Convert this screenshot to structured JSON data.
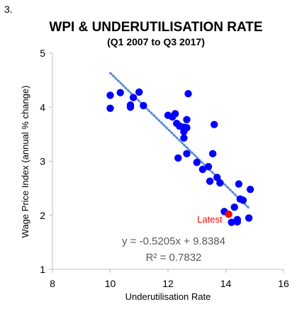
{
  "figure": {
    "number": "3."
  },
  "colors": {
    "points": "#0000ff",
    "latest_point": "#ff0000",
    "latest_label": "#ff0000",
    "trendline": "#5b8fd0",
    "axis": "#bfbfbf",
    "text": "#000000",
    "equation_text": "#595959"
  },
  "chart_data": {
    "type": "scatter",
    "title": "WPI & UNDERUTILISATION RATE",
    "subtitle": "(Q1 2007 to Q3 2017)",
    "xlabel": "Underutilisation Rate",
    "ylabel": "Wage Price Index (annual % change)",
    "xlim": [
      8,
      16
    ],
    "ylim": [
      1,
      5
    ],
    "xticks": [
      8,
      10,
      12,
      14,
      16
    ],
    "yticks": [
      1,
      2,
      3,
      4,
      5
    ],
    "grid": false,
    "legend": "none",
    "points": [
      {
        "x": 10.0,
        "y": 4.22
      },
      {
        "x": 10.0,
        "y": 3.98
      },
      {
        "x": 10.35,
        "y": 4.27
      },
      {
        "x": 10.7,
        "y": 4.0
      },
      {
        "x": 10.7,
        "y": 4.04
      },
      {
        "x": 10.8,
        "y": 4.18
      },
      {
        "x": 11.0,
        "y": 4.28
      },
      {
        "x": 11.15,
        "y": 4.03
      },
      {
        "x": 12.0,
        "y": 3.85
      },
      {
        "x": 12.15,
        "y": 3.82
      },
      {
        "x": 12.25,
        "y": 3.88
      },
      {
        "x": 12.3,
        "y": 3.7
      },
      {
        "x": 12.4,
        "y": 3.65
      },
      {
        "x": 12.35,
        "y": 3.06
      },
      {
        "x": 12.55,
        "y": 3.63
      },
      {
        "x": 12.55,
        "y": 3.55
      },
      {
        "x": 12.55,
        "y": 3.43
      },
      {
        "x": 12.65,
        "y": 3.77
      },
      {
        "x": 12.65,
        "y": 3.62
      },
      {
        "x": 12.7,
        "y": 4.25
      },
      {
        "x": 12.65,
        "y": 3.14
      },
      {
        "x": 13.0,
        "y": 2.98
      },
      {
        "x": 13.2,
        "y": 2.85
      },
      {
        "x": 13.4,
        "y": 2.9
      },
      {
        "x": 13.45,
        "y": 2.63
      },
      {
        "x": 13.55,
        "y": 3.14
      },
      {
        "x": 13.6,
        "y": 3.68
      },
      {
        "x": 13.7,
        "y": 2.7
      },
      {
        "x": 13.8,
        "y": 2.6
      },
      {
        "x": 13.95,
        "y": 2.07
      },
      {
        "x": 14.2,
        "y": 1.87
      },
      {
        "x": 14.3,
        "y": 2.15
      },
      {
        "x": 14.4,
        "y": 1.92
      },
      {
        "x": 14.4,
        "y": 1.88
      },
      {
        "x": 14.45,
        "y": 2.58
      },
      {
        "x": 14.5,
        "y": 2.3
      },
      {
        "x": 14.6,
        "y": 2.28
      },
      {
        "x": 14.8,
        "y": 1.95
      },
      {
        "x": 14.85,
        "y": 2.48
      }
    ],
    "latest_point": {
      "x": 14.1,
      "y": 2.02,
      "label": "Latest"
    },
    "trendline": {
      "slope": -0.5205,
      "intercept": 9.8384,
      "x_range": [
        10.0,
        14.8
      ],
      "equation": "y = -0.5205x + 9.8384",
      "r_squared": "R² = 0.7832"
    }
  }
}
